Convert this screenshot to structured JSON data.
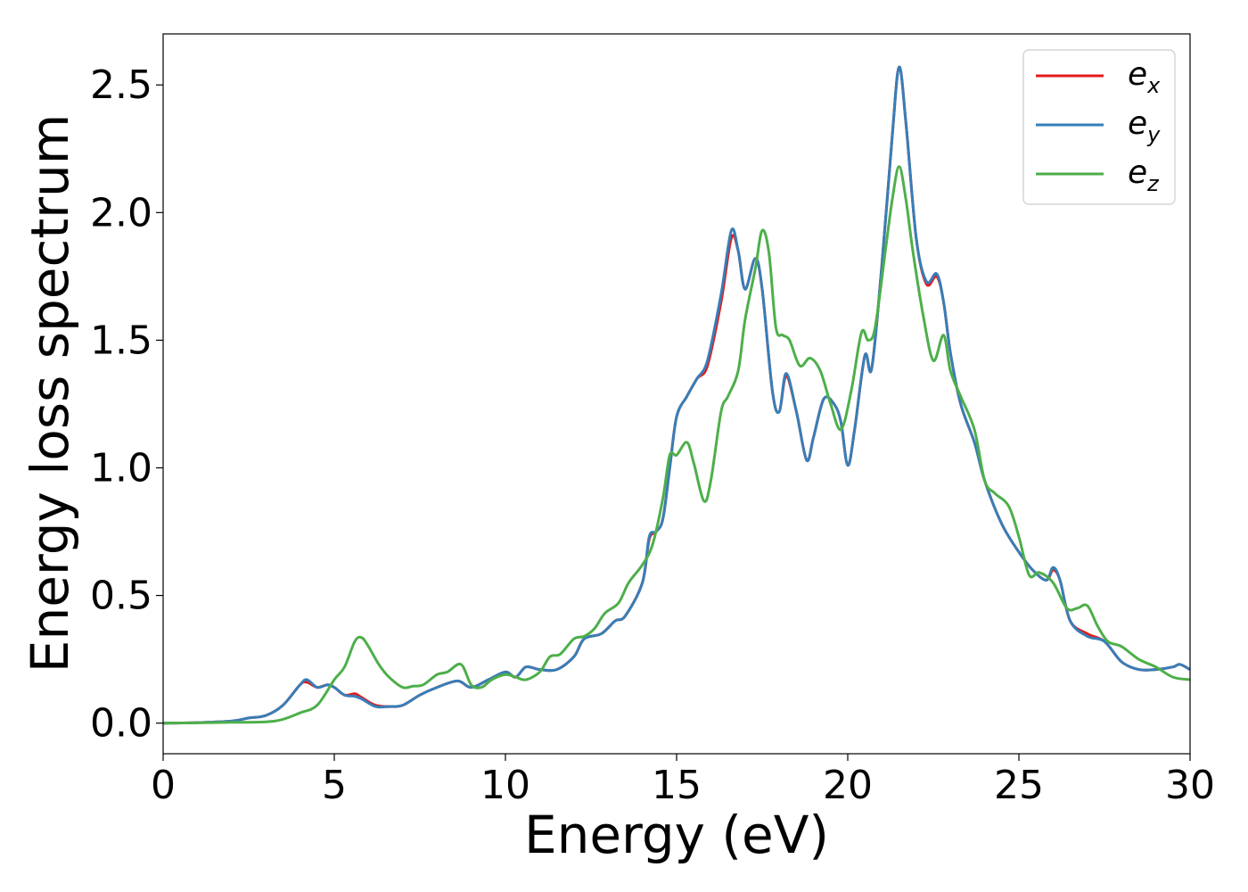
{
  "chart_data": {
    "type": "line",
    "title": "",
    "xlabel": "Energy (eV)",
    "ylabel": "Energy loss spectrum",
    "xlim": [
      0,
      30
    ],
    "ylim": [
      -0.12,
      2.7
    ],
    "xticks": [
      0,
      5,
      10,
      15,
      20,
      25,
      30
    ],
    "xtick_labels": [
      "0",
      "5",
      "10",
      "15",
      "20",
      "25",
      "30"
    ],
    "yticks": [
      0.0,
      0.5,
      1.0,
      1.5,
      2.0,
      2.5
    ],
    "ytick_labels": [
      "0.0",
      "0.5",
      "1.0",
      "1.5",
      "2.0",
      "2.5"
    ],
    "grid": false,
    "legend_position": "top-right",
    "series": [
      {
        "name": "e_x",
        "label_base": "e",
        "label_sub": "x",
        "color": "#e41a1c",
        "points": [
          [
            0,
            0
          ],
          [
            1,
            0.002
          ],
          [
            2,
            0.008
          ],
          [
            2.5,
            0.02
          ],
          [
            3,
            0.03
          ],
          [
            3.5,
            0.07
          ],
          [
            4,
            0.15
          ],
          [
            4.2,
            0.16
          ],
          [
            4.5,
            0.14
          ],
          [
            4.8,
            0.15
          ],
          [
            5,
            0.14
          ],
          [
            5.3,
            0.11
          ],
          [
            5.6,
            0.115
          ],
          [
            5.8,
            0.1
          ],
          [
            6.2,
            0.07
          ],
          [
            6.6,
            0.065
          ],
          [
            7,
            0.07
          ],
          [
            7.5,
            0.11
          ],
          [
            8,
            0.14
          ],
          [
            8.6,
            0.165
          ],
          [
            9,
            0.14
          ],
          [
            9.5,
            0.17
          ],
          [
            10,
            0.2
          ],
          [
            10.3,
            0.18
          ],
          [
            10.6,
            0.22
          ],
          [
            11,
            0.21
          ],
          [
            11.5,
            0.21
          ],
          [
            12,
            0.26
          ],
          [
            12.3,
            0.33
          ],
          [
            12.8,
            0.35
          ],
          [
            13.2,
            0.4
          ],
          [
            13.5,
            0.42
          ],
          [
            14,
            0.55
          ],
          [
            14.2,
            0.72
          ],
          [
            14.4,
            0.75
          ],
          [
            14.6,
            0.8
          ],
          [
            14.8,
            1.0
          ],
          [
            15,
            1.2
          ],
          [
            15.3,
            1.28
          ],
          [
            15.6,
            1.35
          ],
          [
            15.9,
            1.4
          ],
          [
            16.3,
            1.65
          ],
          [
            16.6,
            1.9
          ],
          [
            16.8,
            1.85
          ],
          [
            17,
            1.7
          ],
          [
            17.3,
            1.82
          ],
          [
            17.5,
            1.7
          ],
          [
            17.8,
            1.3
          ],
          [
            18,
            1.22
          ],
          [
            18.2,
            1.36
          ],
          [
            18.5,
            1.22
          ],
          [
            18.8,
            1.03
          ],
          [
            19,
            1.12
          ],
          [
            19.3,
            1.27
          ],
          [
            19.6,
            1.25
          ],
          [
            19.8,
            1.18
          ],
          [
            20,
            1.01
          ],
          [
            20.2,
            1.15
          ],
          [
            20.5,
            1.44
          ],
          [
            20.7,
            1.39
          ],
          [
            21,
            1.8
          ],
          [
            21.3,
            2.3
          ],
          [
            21.5,
            2.57
          ],
          [
            21.7,
            2.35
          ],
          [
            22,
            1.9
          ],
          [
            22.3,
            1.72
          ],
          [
            22.6,
            1.75
          ],
          [
            22.8,
            1.65
          ],
          [
            23,
            1.45
          ],
          [
            23.3,
            1.25
          ],
          [
            23.7,
            1.1
          ],
          [
            24,
            0.95
          ],
          [
            24.5,
            0.78
          ],
          [
            25,
            0.67
          ],
          [
            25.4,
            0.6
          ],
          [
            25.8,
            0.56
          ],
          [
            26,
            0.6
          ],
          [
            26.2,
            0.56
          ],
          [
            26.5,
            0.4
          ],
          [
            27,
            0.35
          ],
          [
            27.5,
            0.32
          ],
          [
            28,
            0.24
          ],
          [
            28.5,
            0.21
          ],
          [
            29,
            0.21
          ],
          [
            29.5,
            0.22
          ],
          [
            29.7,
            0.23
          ],
          [
            30,
            0.21
          ]
        ]
      },
      {
        "name": "e_y",
        "label_base": "e",
        "label_sub": "y",
        "color": "#377eb8",
        "points": [
          [
            0,
            0
          ],
          [
            1,
            0.002
          ],
          [
            2,
            0.008
          ],
          [
            2.5,
            0.02
          ],
          [
            3,
            0.03
          ],
          [
            3.5,
            0.07
          ],
          [
            4,
            0.15
          ],
          [
            4.2,
            0.17
          ],
          [
            4.5,
            0.14
          ],
          [
            4.8,
            0.15
          ],
          [
            5,
            0.14
          ],
          [
            5.3,
            0.11
          ],
          [
            5.6,
            0.105
          ],
          [
            5.8,
            0.095
          ],
          [
            6.2,
            0.065
          ],
          [
            6.6,
            0.065
          ],
          [
            7,
            0.07
          ],
          [
            7.5,
            0.11
          ],
          [
            8,
            0.14
          ],
          [
            8.6,
            0.165
          ],
          [
            9,
            0.14
          ],
          [
            9.5,
            0.17
          ],
          [
            10,
            0.2
          ],
          [
            10.3,
            0.18
          ],
          [
            10.6,
            0.22
          ],
          [
            11,
            0.21
          ],
          [
            11.5,
            0.21
          ],
          [
            12,
            0.26
          ],
          [
            12.3,
            0.33
          ],
          [
            12.8,
            0.35
          ],
          [
            13.2,
            0.4
          ],
          [
            13.5,
            0.42
          ],
          [
            14,
            0.55
          ],
          [
            14.2,
            0.73
          ],
          [
            14.4,
            0.75
          ],
          [
            14.6,
            0.8
          ],
          [
            14.8,
            1.0
          ],
          [
            15,
            1.2
          ],
          [
            15.3,
            1.28
          ],
          [
            15.6,
            1.35
          ],
          [
            15.9,
            1.42
          ],
          [
            16.3,
            1.68
          ],
          [
            16.6,
            1.93
          ],
          [
            16.8,
            1.85
          ],
          [
            17,
            1.7
          ],
          [
            17.3,
            1.82
          ],
          [
            17.5,
            1.7
          ],
          [
            17.8,
            1.3
          ],
          [
            18,
            1.22
          ],
          [
            18.2,
            1.37
          ],
          [
            18.5,
            1.22
          ],
          [
            18.8,
            1.03
          ],
          [
            19,
            1.12
          ],
          [
            19.3,
            1.27
          ],
          [
            19.6,
            1.25
          ],
          [
            19.8,
            1.18
          ],
          [
            20,
            1.01
          ],
          [
            20.2,
            1.15
          ],
          [
            20.5,
            1.44
          ],
          [
            20.7,
            1.39
          ],
          [
            21,
            1.8
          ],
          [
            21.3,
            2.3
          ],
          [
            21.5,
            2.57
          ],
          [
            21.7,
            2.35
          ],
          [
            22,
            1.9
          ],
          [
            22.3,
            1.73
          ],
          [
            22.6,
            1.76
          ],
          [
            22.8,
            1.65
          ],
          [
            23,
            1.45
          ],
          [
            23.3,
            1.25
          ],
          [
            23.7,
            1.1
          ],
          [
            24,
            0.95
          ],
          [
            24.5,
            0.78
          ],
          [
            25,
            0.67
          ],
          [
            25.4,
            0.6
          ],
          [
            25.8,
            0.56
          ],
          [
            26,
            0.61
          ],
          [
            26.2,
            0.56
          ],
          [
            26.5,
            0.4
          ],
          [
            27,
            0.34
          ],
          [
            27.5,
            0.32
          ],
          [
            28,
            0.24
          ],
          [
            28.5,
            0.21
          ],
          [
            29,
            0.21
          ],
          [
            29.5,
            0.22
          ],
          [
            29.7,
            0.23
          ],
          [
            30,
            0.21
          ]
        ]
      },
      {
        "name": "e_z",
        "label_base": "e",
        "label_sub": "z",
        "color": "#4daf4a",
        "points": [
          [
            0,
            0
          ],
          [
            1,
            0.001
          ],
          [
            2,
            0.003
          ],
          [
            3,
            0.005
          ],
          [
            3.5,
            0.015
          ],
          [
            4,
            0.04
          ],
          [
            4.5,
            0.07
          ],
          [
            5,
            0.17
          ],
          [
            5.3,
            0.22
          ],
          [
            5.6,
            0.32
          ],
          [
            5.8,
            0.335
          ],
          [
            6,
            0.3
          ],
          [
            6.3,
            0.23
          ],
          [
            6.6,
            0.18
          ],
          [
            7,
            0.14
          ],
          [
            7.3,
            0.145
          ],
          [
            7.6,
            0.15
          ],
          [
            8,
            0.19
          ],
          [
            8.3,
            0.2
          ],
          [
            8.7,
            0.23
          ],
          [
            9,
            0.15
          ],
          [
            9.3,
            0.14
          ],
          [
            9.6,
            0.17
          ],
          [
            10,
            0.19
          ],
          [
            10.3,
            0.18
          ],
          [
            10.6,
            0.17
          ],
          [
            11,
            0.2
          ],
          [
            11.3,
            0.26
          ],
          [
            11.6,
            0.27
          ],
          [
            12,
            0.33
          ],
          [
            12.3,
            0.34
          ],
          [
            12.6,
            0.37
          ],
          [
            12.9,
            0.43
          ],
          [
            13.3,
            0.47
          ],
          [
            13.6,
            0.55
          ],
          [
            14,
            0.62
          ],
          [
            14.3,
            0.7
          ],
          [
            14.6,
            0.88
          ],
          [
            14.8,
            1.05
          ],
          [
            15,
            1.05
          ],
          [
            15.3,
            1.1
          ],
          [
            15.5,
            1.02
          ],
          [
            15.8,
            0.87
          ],
          [
            16,
            0.95
          ],
          [
            16.3,
            1.22
          ],
          [
            16.5,
            1.28
          ],
          [
            16.8,
            1.38
          ],
          [
            17,
            1.58
          ],
          [
            17.3,
            1.78
          ],
          [
            17.5,
            1.93
          ],
          [
            17.7,
            1.84
          ],
          [
            17.9,
            1.55
          ],
          [
            18.1,
            1.52
          ],
          [
            18.3,
            1.5
          ],
          [
            18.6,
            1.4
          ],
          [
            18.9,
            1.43
          ],
          [
            19.2,
            1.38
          ],
          [
            19.5,
            1.25
          ],
          [
            19.8,
            1.15
          ],
          [
            20.1,
            1.3
          ],
          [
            20.4,
            1.53
          ],
          [
            20.6,
            1.5
          ],
          [
            20.8,
            1.55
          ],
          [
            21.1,
            1.85
          ],
          [
            21.3,
            2.05
          ],
          [
            21.5,
            2.18
          ],
          [
            21.7,
            2.05
          ],
          [
            21.9,
            1.85
          ],
          [
            22.2,
            1.6
          ],
          [
            22.5,
            1.42
          ],
          [
            22.8,
            1.52
          ],
          [
            23,
            1.38
          ],
          [
            23.3,
            1.28
          ],
          [
            23.7,
            1.15
          ],
          [
            24,
            0.95
          ],
          [
            24.3,
            0.9
          ],
          [
            24.7,
            0.85
          ],
          [
            25,
            0.73
          ],
          [
            25.3,
            0.58
          ],
          [
            25.6,
            0.59
          ],
          [
            26,
            0.55
          ],
          [
            26.4,
            0.45
          ],
          [
            26.7,
            0.45
          ],
          [
            27,
            0.46
          ],
          [
            27.3,
            0.38
          ],
          [
            27.6,
            0.32
          ],
          [
            28,
            0.3
          ],
          [
            28.5,
            0.25
          ],
          [
            29,
            0.22
          ],
          [
            29.5,
            0.18
          ],
          [
            30,
            0.17
          ]
        ]
      }
    ]
  }
}
